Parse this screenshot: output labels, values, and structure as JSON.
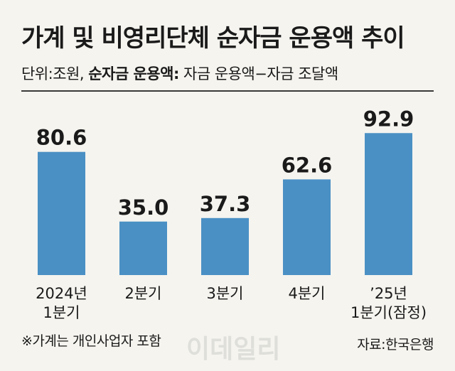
{
  "header": {
    "title": "가계 및 비영리단체 순자금 운용액 추이",
    "unit_prefix": "단위:조원, ",
    "unit_bold": "순자금 운용액:",
    "unit_suffix": " 자금 운용액−자금 조달액"
  },
  "footer": {
    "note": "※가계는 개인사업자 포함",
    "source": "자료:한국은행",
    "watermark": "이데일리"
  },
  "colors": {
    "bar": "#4a90c4",
    "background": "#f5f4ef"
  },
  "chart_data": {
    "type": "bar",
    "categories": [
      [
        "2024년",
        "1분기"
      ],
      [
        "2분기"
      ],
      [
        "3분기"
      ],
      [
        "4분기"
      ],
      [
        "’25년",
        "1분기(잠정)"
      ]
    ],
    "values": [
      80.6,
      35.0,
      37.3,
      62.6,
      92.9
    ],
    "value_labels": [
      "80.6",
      "35.0",
      "37.3",
      "62.6",
      "92.9"
    ],
    "ylim": [
      0,
      100
    ],
    "grid": false,
    "legend": "none"
  }
}
